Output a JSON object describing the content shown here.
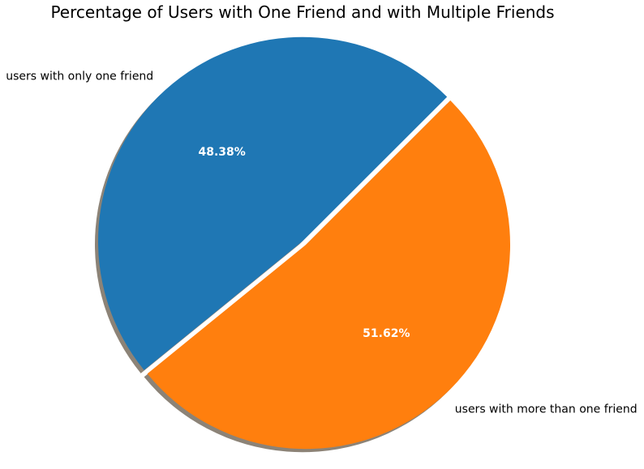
{
  "chart_data": {
    "type": "pie",
    "title": "Percentage of Users with One Friend and with Multiple Friends",
    "slices": [
      {
        "label": "users with only one friend",
        "value": 48.38,
        "pct_label": "48.38%",
        "color": "#1f77b4"
      },
      {
        "label": "users with more than one friend",
        "value": 51.62,
        "pct_label": "51.62%",
        "color": "#ff7f0e"
      }
    ],
    "start_angle_deg": 45,
    "shadow": true,
    "legend": "none"
  }
}
